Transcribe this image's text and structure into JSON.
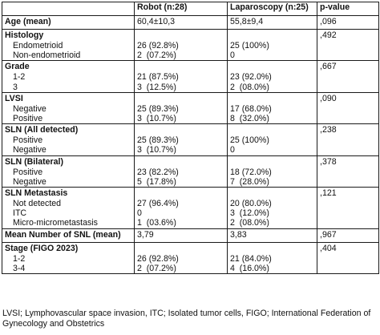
{
  "columns": [
    "",
    "Robot (n:28)",
    "Laparoscopy (n:25)",
    "p-value"
  ],
  "sections": [
    {
      "head": [
        "Age (mean)",
        "60,4±10,3",
        "55,8±9,4",
        ",096"
      ],
      "rows": []
    },
    {
      "head": [
        "Histology",
        "",
        "",
        ",492"
      ],
      "rows": [
        [
          "Endometrioid",
          "26 (92.8%)",
          "25 (100%)"
        ],
        [
          "Non-endometrioid",
          "2  (07.2%)",
          "0"
        ]
      ]
    },
    {
      "head": [
        "Grade",
        "",
        "",
        ",667"
      ],
      "rows": [
        [
          "1-2",
          "21 (87.5%)",
          "23 (92.0%)"
        ],
        [
          "3",
          "3  (12.5%)",
          "2  (08.0%)"
        ]
      ]
    },
    {
      "head": [
        "LVSI",
        "",
        "",
        ",090"
      ],
      "rows": [
        [
          "Negative",
          "25 (89.3%)",
          "17 (68.0%)"
        ],
        [
          "Positive",
          "3  (10.7%)",
          "8  (32.0%)"
        ]
      ]
    },
    {
      "head": [
        "SLN (All detected)",
        "",
        "",
        ",238"
      ],
      "rows": [
        [
          "Positive",
          "25 (89.3%)",
          "25 (100%)"
        ],
        [
          "Negative",
          "3  (10.7%)",
          "0"
        ]
      ]
    },
    {
      "head": [
        "SLN (Bilateral)",
        "",
        "",
        ",378"
      ],
      "rows": [
        [
          "Positive",
          "23 (82.2%)",
          "18 (72.0%)"
        ],
        [
          "Negative",
          "5  (17.8%)",
          "7  (28.0%)"
        ]
      ]
    },
    {
      "head": [
        "SLN Metastasis",
        "",
        "",
        ",121"
      ],
      "rows": [
        [
          "Not detected",
          "27 (96.4%)",
          "20 (80.0%)"
        ],
        [
          "ITC",
          "0",
          "3  (12.0%)"
        ],
        [
          "Micro-micrometastasis",
          "1  (03.6%)",
          "2  (08.0%)"
        ]
      ]
    },
    {
      "head": [
        "Mean Number of SNL (mean)",
        "3,79",
        "3,83",
        ",967"
      ],
      "rows": []
    },
    {
      "head": [
        "Stage (FIGO 2023)",
        "",
        "",
        ",404"
      ],
      "rows": [
        [
          "1-2",
          "26 (92.8%)",
          "21 (84.0%)"
        ],
        [
          "3-4",
          "2  (07.2%)",
          "4  (16.0%)"
        ]
      ]
    }
  ],
  "footnote": "LVSI; Lymphovascular space invasion, ITC; Isolated tumor cells, FIGO; International Federation of Gynecology and Obstetrics"
}
